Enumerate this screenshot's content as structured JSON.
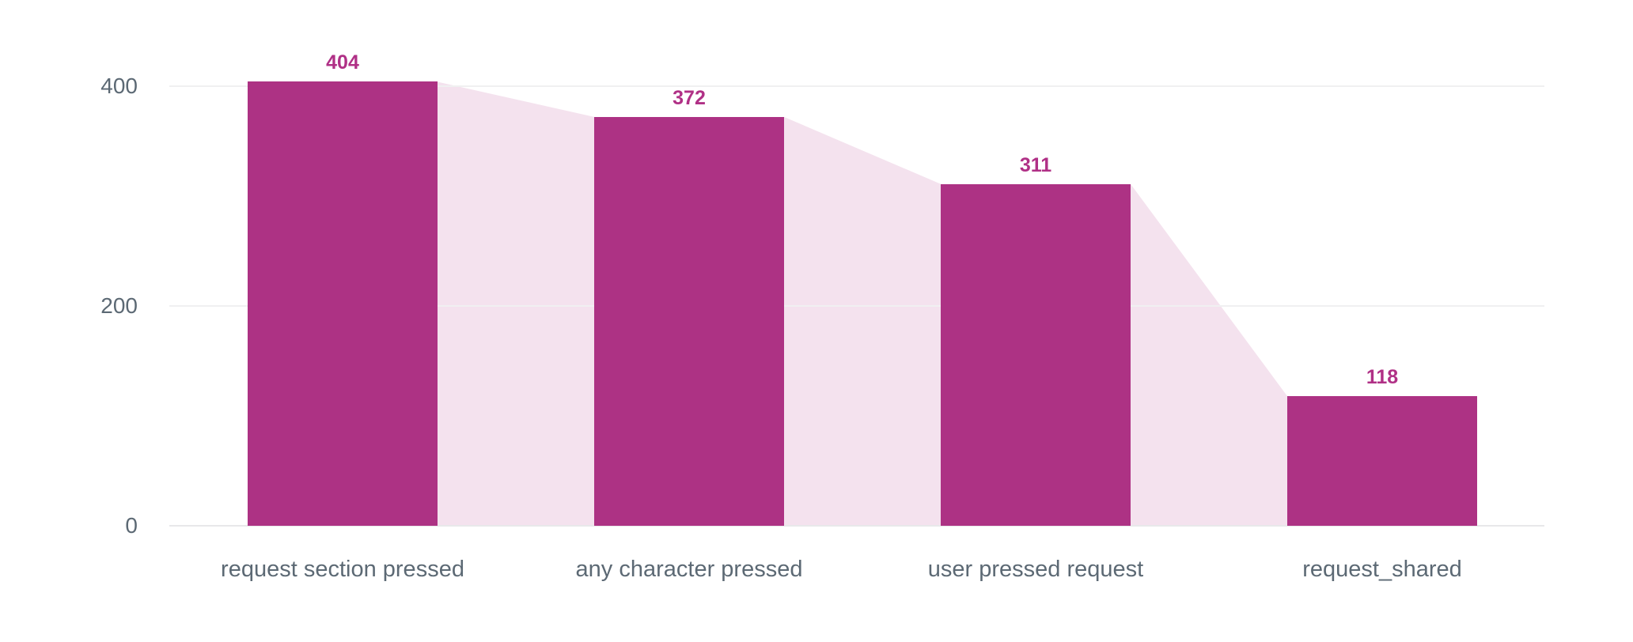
{
  "chart_data": {
    "type": "bar",
    "subtype": "funnel-steps",
    "title": "",
    "xlabel": "",
    "ylabel": "",
    "categories": [
      "request section pressed",
      "any character pressed",
      "user pressed request",
      "request_shared"
    ],
    "values": [
      404,
      372,
      311,
      118
    ],
    "value_labels": [
      "404",
      "372",
      "311",
      "118"
    ],
    "yticks": [
      0,
      200,
      400
    ],
    "ytick_labels": [
      "0",
      "200",
      "400"
    ],
    "ylim": [
      0,
      400
    ],
    "grid": "horizontal",
    "legend": "none",
    "colors": {
      "bar": "#ad3284",
      "connector": "#f4e2ee",
      "value_label": "#b03086",
      "axis_text": "#5c6974",
      "gridline": "#f0f0f1",
      "baseline": "#e8e8ea",
      "background": "#ffffff"
    }
  }
}
